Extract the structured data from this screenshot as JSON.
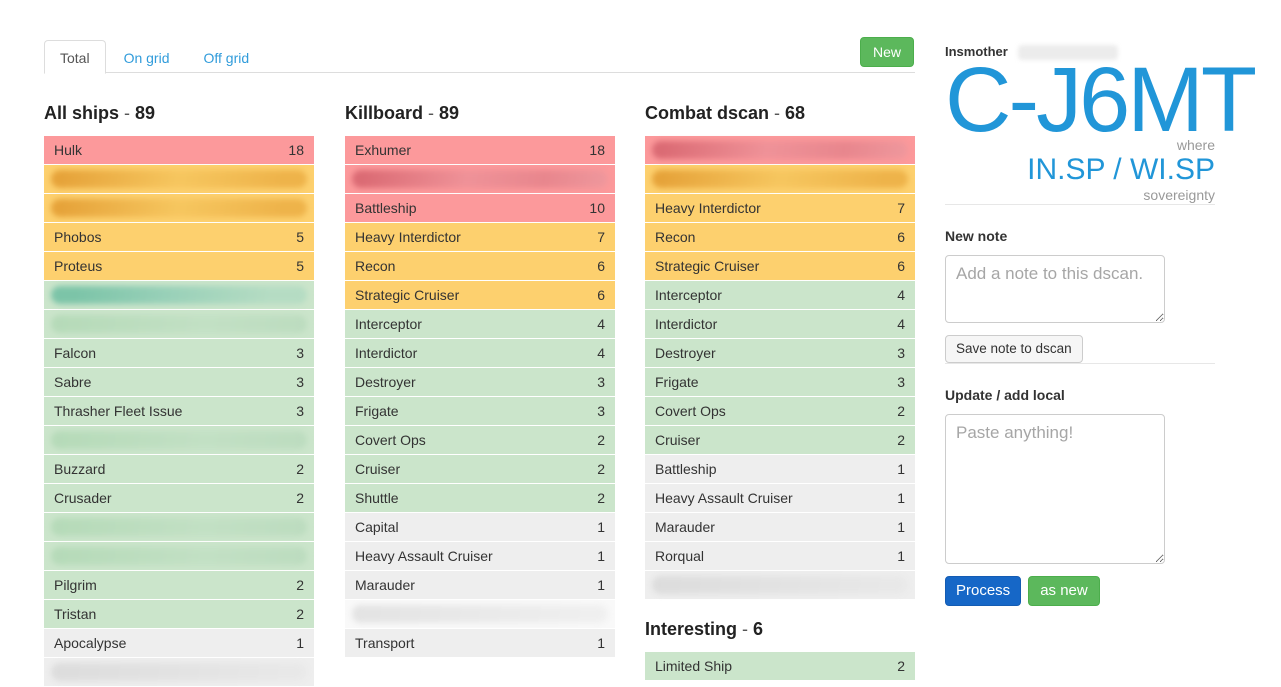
{
  "header": {
    "tabs": [
      {
        "label": "Total",
        "active": true
      },
      {
        "label": "On grid",
        "active": false
      },
      {
        "label": "Off grid",
        "active": false
      }
    ],
    "new_button_label": "New"
  },
  "columns": [
    {
      "title": "All ships",
      "count": 89,
      "rows": [
        {
          "name": "Hulk",
          "value": 18,
          "tone": "red"
        },
        {
          "redacted": true,
          "tone": "yellow"
        },
        {
          "redacted": true,
          "tone": "yellow"
        },
        {
          "name": "Phobos",
          "value": 5,
          "tone": "yellow"
        },
        {
          "name": "Proteus",
          "value": 5,
          "tone": "yellow"
        },
        {
          "redacted": true,
          "tone": "green",
          "smear": "teal"
        },
        {
          "redacted": true,
          "tone": "green"
        },
        {
          "name": "Falcon",
          "value": 3,
          "tone": "green"
        },
        {
          "name": "Sabre",
          "value": 3,
          "tone": "green"
        },
        {
          "name": "Thrasher Fleet Issue",
          "value": 3,
          "tone": "green"
        },
        {
          "redacted": true,
          "tone": "green"
        },
        {
          "name": "Buzzard",
          "value": 2,
          "tone": "green"
        },
        {
          "name": "Crusader",
          "value": 2,
          "tone": "green"
        },
        {
          "redacted": true,
          "tone": "green"
        },
        {
          "redacted": true,
          "tone": "green"
        },
        {
          "name": "Pilgrim",
          "value": 2,
          "tone": "green"
        },
        {
          "name": "Tristan",
          "value": 2,
          "tone": "green"
        },
        {
          "name": "Apocalypse",
          "value": 1,
          "tone": "gray"
        },
        {
          "redacted": true,
          "tone": "gray"
        }
      ]
    },
    {
      "title": "Killboard",
      "count": 89,
      "rows": [
        {
          "name": "Exhumer",
          "value": 18,
          "tone": "red"
        },
        {
          "redacted": true,
          "tone": "red"
        },
        {
          "name": "Battleship",
          "value": 10,
          "tone": "red"
        },
        {
          "name": "Heavy Interdictor",
          "value": 7,
          "tone": "yellow"
        },
        {
          "name": "Recon",
          "value": 6,
          "tone": "yellow"
        },
        {
          "name": "Strategic Cruiser",
          "value": 6,
          "tone": "yellow"
        },
        {
          "name": "Interceptor",
          "value": 4,
          "tone": "green"
        },
        {
          "name": "Interdictor",
          "value": 4,
          "tone": "green"
        },
        {
          "name": "Destroyer",
          "value": 3,
          "tone": "green"
        },
        {
          "name": "Frigate",
          "value": 3,
          "tone": "green"
        },
        {
          "name": "Covert Ops",
          "value": 2,
          "tone": "green"
        },
        {
          "name": "Cruiser",
          "value": 2,
          "tone": "green"
        },
        {
          "name": "Shuttle",
          "value": 2,
          "tone": "green"
        },
        {
          "name": "Capital",
          "value": 1,
          "tone": "gray"
        },
        {
          "name": "Heavy Assault Cruiser",
          "value": 1,
          "tone": "gray"
        },
        {
          "name": "Marauder",
          "value": 1,
          "tone": "gray"
        },
        {
          "redacted": true,
          "tone": "white"
        },
        {
          "name": "Transport",
          "value": 1,
          "tone": "gray"
        }
      ]
    },
    {
      "title": "Combat dscan",
      "count": 68,
      "rows": [
        {
          "redacted": true,
          "tone": "red"
        },
        {
          "redacted": true,
          "tone": "yellow"
        },
        {
          "name": "Heavy Interdictor",
          "value": 7,
          "tone": "yellow"
        },
        {
          "name": "Recon",
          "value": 6,
          "tone": "yellow"
        },
        {
          "name": "Strategic Cruiser",
          "value": 6,
          "tone": "yellow"
        },
        {
          "name": "Interceptor",
          "value": 4,
          "tone": "green"
        },
        {
          "name": "Interdictor",
          "value": 4,
          "tone": "green"
        },
        {
          "name": "Destroyer",
          "value": 3,
          "tone": "green"
        },
        {
          "name": "Frigate",
          "value": 3,
          "tone": "green"
        },
        {
          "name": "Covert Ops",
          "value": 2,
          "tone": "green"
        },
        {
          "name": "Cruiser",
          "value": 2,
          "tone": "green"
        },
        {
          "name": "Battleship",
          "value": 1,
          "tone": "gray"
        },
        {
          "name": "Heavy Assault Cruiser",
          "value": 1,
          "tone": "gray"
        },
        {
          "name": "Marauder",
          "value": 1,
          "tone": "gray"
        },
        {
          "name": "Rorqual",
          "value": 1,
          "tone": "gray"
        },
        {
          "redacted": true,
          "tone": "gray"
        }
      ],
      "extra_section": {
        "title": "Interesting",
        "count": 6,
        "rows": [
          {
            "name": "Limited Ship",
            "value": 2,
            "tone": "green"
          }
        ]
      }
    }
  ],
  "sidebar": {
    "region": "Insmother",
    "system": "C-J6MT",
    "where_label": "where",
    "alliances": [
      "IN.SP",
      "WI.SP"
    ],
    "alliance_separator": "/",
    "sovereignty_label": "sovereignty",
    "new_note": {
      "label": "New note",
      "placeholder": "Add a note to this dscan.",
      "button_label": "Save note to dscan"
    },
    "update_local": {
      "label": "Update / add local",
      "placeholder": "Paste anything!",
      "process_label": "Process",
      "as_new_label": "as new"
    }
  },
  "colors": {
    "accent_blue": "#2196d8",
    "link_blue": "#319cdb",
    "row_red": "#fc999b",
    "row_yellow": "#fdd06e",
    "row_green": "#cbe5cb",
    "row_gray": "#eeeeee",
    "new_button_green": "#5cb85c",
    "process_blue": "#1667c7",
    "as_new_green": "#5cb85c"
  }
}
